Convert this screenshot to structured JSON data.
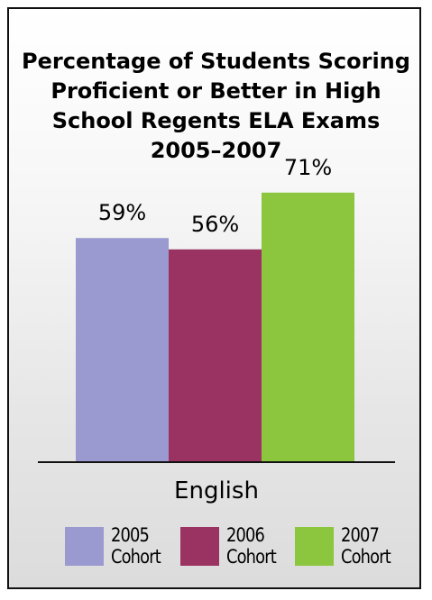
{
  "chart_data": {
    "type": "bar",
    "title_lines": [
      "Percentage of Students Scoring",
      "Proficient or Better in High",
      "School Regents ELA Exams",
      "2005–2007"
    ],
    "categories": [
      "English"
    ],
    "xlabel": "English",
    "ylim": [
      0,
      100
    ],
    "series": [
      {
        "name": "2005 Cohort",
        "name_lines": [
          "2005",
          "Cohort"
        ],
        "value": 59,
        "label": "59%",
        "color": "#9a9ad0"
      },
      {
        "name": "2006 Cohort",
        "name_lines": [
          "2006",
          "Cohort"
        ],
        "value": 56,
        "label": "56%",
        "color": "#9a3361"
      },
      {
        "name": "2007 Cohort",
        "name_lines": [
          "2007",
          "Cohort"
        ],
        "value": 71,
        "label": "71%",
        "color": "#8cc63f"
      }
    ],
    "grid": false,
    "legend_position": "bottom"
  }
}
